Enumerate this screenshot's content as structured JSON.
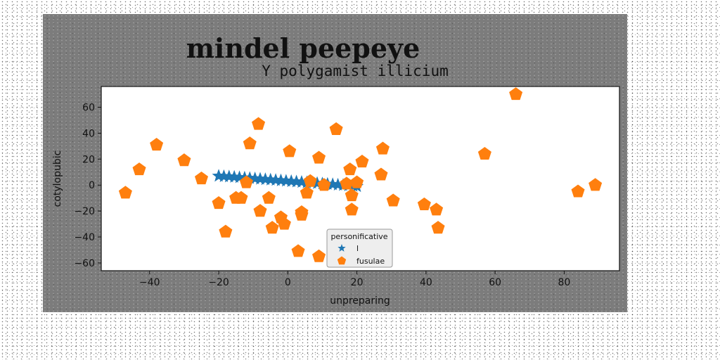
{
  "figure_title": "mindel peepeye",
  "colors": {
    "figure_bg": "#7c7c7c",
    "axes_bg": "#ffffff",
    "series_star": "#1f77b4",
    "series_pentagon": "#ff7f0e"
  },
  "chart_data": {
    "type": "scatter",
    "title": "Y polygamist illicium",
    "xlabel": "unpreparing",
    "ylabel": "cotylopubic",
    "xlim": [
      -54,
      96
    ],
    "ylim": [
      -66,
      76
    ],
    "xticks": [
      -40,
      -20,
      0,
      20,
      40,
      60,
      80
    ],
    "yticks": [
      -60,
      -40,
      -20,
      0,
      20,
      40,
      60
    ],
    "xtick_labels": [
      "−40",
      "−20",
      "0",
      "20",
      "40",
      "60",
      "80"
    ],
    "ytick_labels": [
      "−60",
      "−40",
      "−20",
      "0",
      "20",
      "40",
      "60"
    ],
    "grid": false,
    "legend": {
      "title": "personificative",
      "position": "bottom-center"
    },
    "series": [
      {
        "name": "l",
        "marker": "star",
        "color": "#1f77b4",
        "points": [
          [
            -20.0,
            7.0
          ],
          [
            -18.5,
            6.7
          ],
          [
            -17.0,
            6.5
          ],
          [
            -15.5,
            6.2
          ],
          [
            -14.0,
            5.9
          ],
          [
            -12.5,
            5.6
          ],
          [
            -11.0,
            5.3
          ],
          [
            -9.5,
            5.0
          ],
          [
            -8.0,
            4.7
          ],
          [
            -6.5,
            4.4
          ],
          [
            -5.0,
            4.1
          ],
          [
            -3.5,
            3.8
          ],
          [
            -2.0,
            3.5
          ],
          [
            -0.5,
            3.2
          ],
          [
            1.0,
            2.9
          ],
          [
            2.5,
            2.6
          ],
          [
            4.0,
            2.3
          ],
          [
            5.5,
            2.0
          ],
          [
            7.0,
            1.7
          ],
          [
            8.5,
            1.4
          ],
          [
            10.0,
            1.1
          ],
          [
            11.5,
            0.8
          ],
          [
            13.0,
            0.5
          ],
          [
            14.5,
            0.2
          ],
          [
            16.0,
            -0.1
          ],
          [
            17.5,
            -0.4
          ],
          [
            19.0,
            -0.7
          ],
          [
            20.0,
            -1.0
          ]
        ]
      },
      {
        "name": "fusulae",
        "marker": "pentagon",
        "color": "#ff7f0e",
        "points": [
          [
            -47,
            -6
          ],
          [
            -43,
            12
          ],
          [
            -38,
            31
          ],
          [
            -30,
            19
          ],
          [
            -25,
            5
          ],
          [
            -20,
            -14
          ],
          [
            -18,
            -36
          ],
          [
            -15,
            -10
          ],
          [
            -13.5,
            -10
          ],
          [
            -12,
            2
          ],
          [
            -11,
            32
          ],
          [
            -8.5,
            47
          ],
          [
            -8,
            -20
          ],
          [
            -5.5,
            -10
          ],
          [
            -4.5,
            -33
          ],
          [
            -2,
            -25
          ],
          [
            -1,
            -30
          ],
          [
            0.5,
            26
          ],
          [
            3,
            -51
          ],
          [
            4,
            -21
          ],
          [
            4,
            -23
          ],
          [
            5.5,
            -6
          ],
          [
            6.5,
            3
          ],
          [
            9,
            -55
          ],
          [
            9,
            21
          ],
          [
            10.5,
            0
          ],
          [
            14,
            43
          ],
          [
            17,
            1
          ],
          [
            18,
            12
          ],
          [
            18.5,
            -8
          ],
          [
            18.5,
            -19
          ],
          [
            20,
            2
          ],
          [
            21.5,
            18
          ],
          [
            27,
            8
          ],
          [
            27.5,
            28
          ],
          [
            30.5,
            -12
          ],
          [
            39.5,
            -15
          ],
          [
            43,
            -19
          ],
          [
            43.5,
            -33
          ],
          [
            57,
            24
          ],
          [
            66,
            70
          ],
          [
            84,
            -5
          ],
          [
            89,
            0
          ]
        ]
      }
    ]
  }
}
